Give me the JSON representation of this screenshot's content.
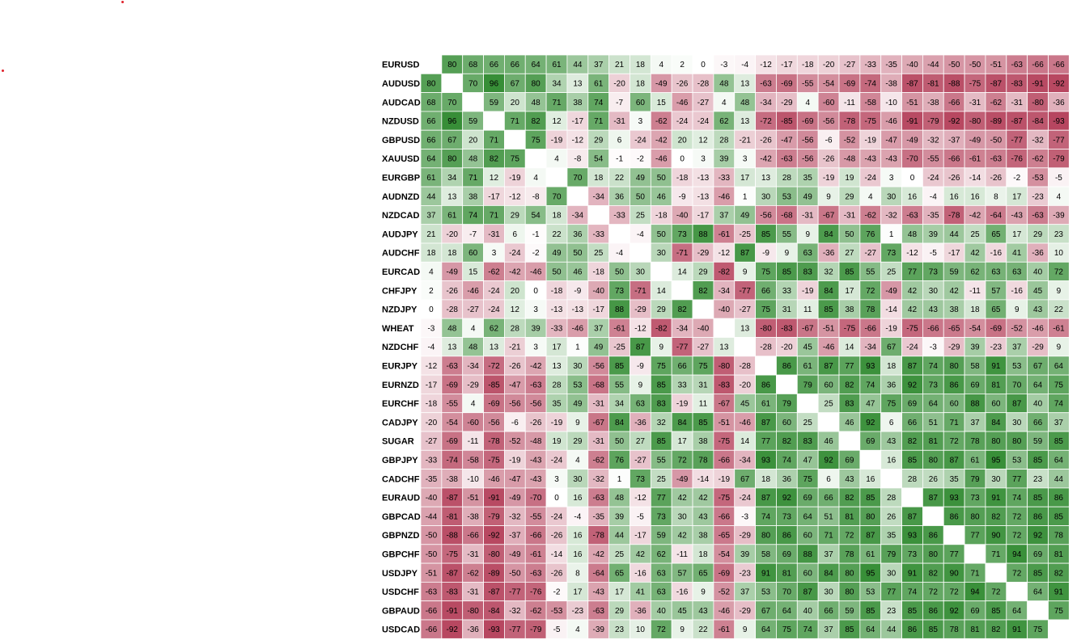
{
  "colors": {
    "positive": "#2f8a2f",
    "negative": "#b23a55",
    "neutral": "#ffffff",
    "grid": "#ffffff",
    "marker": "#e0202a"
  },
  "chart_data": {
    "type": "heatmap",
    "title": "",
    "value_range": [
      -100,
      100
    ],
    "rows": [
      "EURUSD",
      "AUDUSD",
      "AUDCAD",
      "NZDUSD",
      "GBPUSD",
      "XAUUSD",
      "EURGBP",
      "AUDNZD",
      "NZDCAD",
      "AUDJPY",
      "AUDCHF",
      "EURCAD",
      "CHFJPY",
      "NZDJPY",
      "WHEAT",
      "NZDCHF",
      "EURJPY",
      "EURNZD",
      "EURCHF",
      "CADJPY",
      "SUGAR",
      "GBPJPY",
      "CADCHF",
      "EURAUD",
      "GBPCAD",
      "GBPNZD",
      "GBPCHF",
      "USDJPY",
      "USDCHF",
      "GBPAUD",
      "USDCAD"
    ],
    "columns": [
      "EURUSD",
      "AUDUSD",
      "AUDCAD",
      "NZDUSD",
      "GBPUSD",
      "XAUUSD",
      "EURGBP",
      "AUDNZD",
      "NZDCAD",
      "AUDJPY",
      "AUDCHF",
      "EURCAD",
      "CHFJPY",
      "NZDJPY",
      "WHEAT",
      "NZDCHF",
      "EURJPY",
      "EURNZD",
      "EURCHF",
      "CADJPY",
      "SUGAR",
      "GBPJPY",
      "CADCHF",
      "EURAUD",
      "GBPCAD",
      "GBPNZD",
      "GBPCHF",
      "USDJPY",
      "USDCHF",
      "GBPAUD",
      "USDCAD"
    ],
    "column_labels_visible": false,
    "values": [
      [
        null,
        80,
        68,
        66,
        66,
        64,
        61,
        44,
        37,
        21,
        18,
        4,
        2,
        0,
        -3,
        -4,
        -12,
        -17,
        -18,
        -20,
        -27,
        -33,
        -35,
        -40,
        -44,
        -50,
        -50,
        -51,
        -63,
        -66,
        -66
      ],
      [
        80,
        null,
        70,
        96,
        67,
        80,
        34,
        13,
        61,
        -20,
        18,
        -49,
        -26,
        -28,
        48,
        13,
        -63,
        -69,
        -55,
        -54,
        -69,
        -74,
        -38,
        -87,
        -81,
        -88,
        -75,
        -87,
        -83,
        -91,
        -92
      ],
      [
        68,
        70,
        null,
        59,
        20,
        48,
        71,
        38,
        74,
        -7,
        60,
        15,
        -46,
        -27,
        4,
        48,
        -34,
        -29,
        4,
        -60,
        -11,
        -58,
        -10,
        -51,
        -38,
        -66,
        -31,
        -62,
        -31,
        -80,
        -36
      ],
      [
        66,
        96,
        59,
        null,
        71,
        82,
        12,
        -17,
        71,
        -31,
        3,
        -62,
        -24,
        -24,
        62,
        13,
        -72,
        -85,
        -69,
        -56,
        -78,
        -75,
        -46,
        -91,
        -79,
        -92,
        -80,
        -89,
        -87,
        -84,
        -93
      ],
      [
        66,
        67,
        20,
        71,
        null,
        75,
        -19,
        -12,
        29,
        6,
        -24,
        -42,
        20,
        12,
        28,
        -21,
        -26,
        -47,
        -56,
        -6,
        -52,
        -19,
        -47,
        -49,
        -32,
        -37,
        -49,
        -50,
        -77,
        -32,
        -77
      ],
      [
        64,
        80,
        48,
        82,
        75,
        null,
        4,
        -8,
        54,
        -1,
        -2,
        -46,
        0,
        3,
        39,
        3,
        -42,
        -63,
        -56,
        -26,
        -48,
        -43,
        -43,
        -70,
        -55,
        -66,
        -61,
        -63,
        -76,
        -62,
        -79
      ],
      [
        61,
        34,
        71,
        12,
        -19,
        4,
        null,
        70,
        18,
        22,
        49,
        50,
        -18,
        -13,
        -33,
        17,
        13,
        28,
        35,
        -19,
        19,
        -24,
        3,
        0,
        -24,
        -26,
        -14,
        -26,
        -2,
        -53,
        -5
      ],
      [
        44,
        13,
        38,
        -17,
        -12,
        -8,
        70,
        null,
        -34,
        36,
        50,
        46,
        -9,
        -13,
        -46,
        1,
        30,
        53,
        49,
        9,
        29,
        4,
        30,
        16,
        -4,
        16,
        16,
        8,
        17,
        -23,
        4
      ],
      [
        37,
        61,
        74,
        71,
        29,
        54,
        18,
        -34,
        null,
        -33,
        25,
        -18,
        -40,
        -17,
        37,
        49,
        -56,
        -68,
        -31,
        -67,
        -31,
        -62,
        -32,
        -63,
        -35,
        -78,
        -42,
        -64,
        -43,
        -63,
        -39
      ],
      [
        21,
        -20,
        -7,
        -31,
        6,
        -1,
        22,
        36,
        -33,
        null,
        -4,
        50,
        73,
        88,
        -61,
        -25,
        85,
        55,
        9,
        84,
        50,
        76,
        1,
        48,
        39,
        44,
        25,
        65,
        17,
        29,
        23
      ],
      [
        18,
        18,
        60,
        3,
        -24,
        -2,
        49,
        50,
        25,
        -4,
        null,
        30,
        -71,
        -29,
        -12,
        87,
        -9,
        9,
        63,
        -36,
        27,
        -27,
        73,
        -12,
        -5,
        -17,
        42,
        -16,
        41,
        -36,
        10
      ],
      [
        4,
        -49,
        15,
        -62,
        -42,
        -46,
        50,
        46,
        -18,
        50,
        30,
        null,
        14,
        29,
        -82,
        9,
        75,
        85,
        83,
        32,
        85,
        55,
        25,
        77,
        73,
        59,
        62,
        63,
        63,
        40,
        72
      ],
      [
        2,
        -26,
        -46,
        -24,
        20,
        0,
        -18,
        -9,
        -40,
        73,
        -71,
        14,
        null,
        82,
        -34,
        -77,
        66,
        33,
        -19,
        84,
        17,
        72,
        -49,
        42,
        30,
        42,
        -11,
        57,
        -16,
        45,
        9
      ],
      [
        0,
        -28,
        -27,
        -24,
        12,
        3,
        -13,
        -13,
        -17,
        88,
        -29,
        29,
        82,
        null,
        -40,
        -27,
        75,
        31,
        11,
        85,
        38,
        78,
        -14,
        42,
        43,
        38,
        18,
        65,
        9,
        43,
        22
      ],
      [
        -3,
        48,
        4,
        62,
        28,
        39,
        -33,
        -46,
        37,
        -61,
        -12,
        -82,
        -34,
        -40,
        null,
        13,
        -80,
        -83,
        -67,
        -51,
        -75,
        -66,
        -19,
        -75,
        -66,
        -65,
        -54,
        -69,
        -52,
        -46,
        -61
      ],
      [
        -4,
        13,
        48,
        13,
        -21,
        3,
        17,
        1,
        49,
        -25,
        87,
        9,
        -77,
        -27,
        13,
        null,
        -28,
        -20,
        45,
        -46,
        14,
        -34,
        67,
        -24,
        -3,
        -29,
        39,
        -23,
        37,
        -29,
        9
      ],
      [
        -12,
        -63,
        -34,
        -72,
        -26,
        -42,
        13,
        30,
        -56,
        85,
        -9,
        75,
        66,
        75,
        -80,
        -28,
        null,
        86,
        61,
        87,
        77,
        93,
        18,
        87,
        74,
        80,
        58,
        91,
        53,
        67,
        64
      ],
      [
        -17,
        -69,
        -29,
        -85,
        -47,
        -63,
        28,
        53,
        -68,
        55,
        9,
        85,
        33,
        31,
        -83,
        -20,
        86,
        null,
        79,
        60,
        82,
        74,
        36,
        92,
        73,
        86,
        69,
        81,
        70,
        64,
        75
      ],
      [
        -18,
        -55,
        4,
        -69,
        -56,
        -56,
        35,
        49,
        -31,
        34,
        63,
        83,
        -19,
        11,
        -67,
        45,
        61,
        79,
        null,
        25,
        83,
        47,
        75,
        69,
        64,
        60,
        88,
        60,
        87,
        40,
        74
      ],
      [
        -20,
        -54,
        -60,
        -56,
        -6,
        -26,
        -19,
        9,
        -67,
        84,
        -36,
        32,
        84,
        85,
        -51,
        -46,
        87,
        60,
        25,
        null,
        46,
        92,
        6,
        66,
        51,
        71,
        37,
        84,
        30,
        66,
        37
      ],
      [
        -27,
        -69,
        -11,
        -78,
        -52,
        -48,
        19,
        29,
        -31,
        50,
        27,
        85,
        17,
        38,
        -75,
        14,
        77,
        82,
        83,
        46,
        null,
        69,
        43,
        82,
        81,
        72,
        78,
        80,
        80,
        59,
        85
      ],
      [
        -33,
        -74,
        -58,
        -75,
        -19,
        -43,
        -24,
        4,
        -62,
        76,
        -27,
        55,
        72,
        78,
        -66,
        -34,
        93,
        74,
        47,
        92,
        69,
        null,
        16,
        85,
        80,
        87,
        61,
        95,
        53,
        85,
        64
      ],
      [
        -35,
        -38,
        -10,
        -46,
        -47,
        -43,
        3,
        30,
        -32,
        1,
        73,
        25,
        -49,
        -14,
        -19,
        67,
        18,
        36,
        75,
        6,
        43,
        16,
        null,
        28,
        26,
        35,
        79,
        30,
        77,
        23,
        44
      ],
      [
        -40,
        -87,
        -51,
        -91,
        -49,
        -70,
        0,
        16,
        -63,
        48,
        -12,
        77,
        42,
        42,
        -75,
        -24,
        87,
        92,
        69,
        66,
        82,
        85,
        28,
        null,
        87,
        93,
        73,
        91,
        74,
        85,
        86
      ],
      [
        -44,
        -81,
        -38,
        -79,
        -32,
        -55,
        -24,
        -4,
        -35,
        39,
        -5,
        73,
        30,
        43,
        -66,
        -3,
        74,
        73,
        64,
        51,
        81,
        80,
        26,
        87,
        null,
        86,
        80,
        82,
        72,
        86,
        85
      ],
      [
        -50,
        -88,
        -66,
        -92,
        -37,
        -66,
        -26,
        16,
        -78,
        44,
        -17,
        59,
        42,
        38,
        -65,
        -29,
        80,
        86,
        60,
        71,
        72,
        87,
        35,
        93,
        86,
        null,
        77,
        90,
        72,
        92,
        78
      ],
      [
        -50,
        -75,
        -31,
        -80,
        -49,
        -61,
        -14,
        16,
        -42,
        25,
        42,
        62,
        -11,
        18,
        -54,
        39,
        58,
        69,
        88,
        37,
        78,
        61,
        79,
        73,
        80,
        77,
        null,
        71,
        94,
        69,
        81
      ],
      [
        -51,
        -87,
        -62,
        -89,
        -50,
        -63,
        -26,
        8,
        -64,
        65,
        -16,
        63,
        57,
        65,
        -69,
        -23,
        91,
        81,
        60,
        84,
        80,
        95,
        30,
        91,
        82,
        90,
        71,
        null,
        72,
        85,
        82
      ],
      [
        -63,
        -83,
        -31,
        -87,
        -77,
        -76,
        -2,
        17,
        -43,
        17,
        41,
        63,
        -16,
        9,
        -52,
        37,
        53,
        70,
        87,
        30,
        80,
        53,
        77,
        74,
        72,
        72,
        94,
        72,
        null,
        64,
        91
      ],
      [
        -66,
        -91,
        -80,
        -84,
        -32,
        -62,
        -53,
        -23,
        -63,
        29,
        -36,
        40,
        45,
        43,
        -46,
        -29,
        67,
        64,
        40,
        66,
        59,
        85,
        23,
        85,
        86,
        92,
        69,
        85,
        64,
        null,
        75
      ],
      [
        -66,
        -92,
        -36,
        -93,
        -77,
        -79,
        -5,
        4,
        -39,
        23,
        10,
        72,
        9,
        22,
        -61,
        9,
        64,
        75,
        74,
        37,
        85,
        64,
        44,
        86,
        85,
        78,
        81,
        82,
        91,
        75,
        null
      ]
    ]
  }
}
